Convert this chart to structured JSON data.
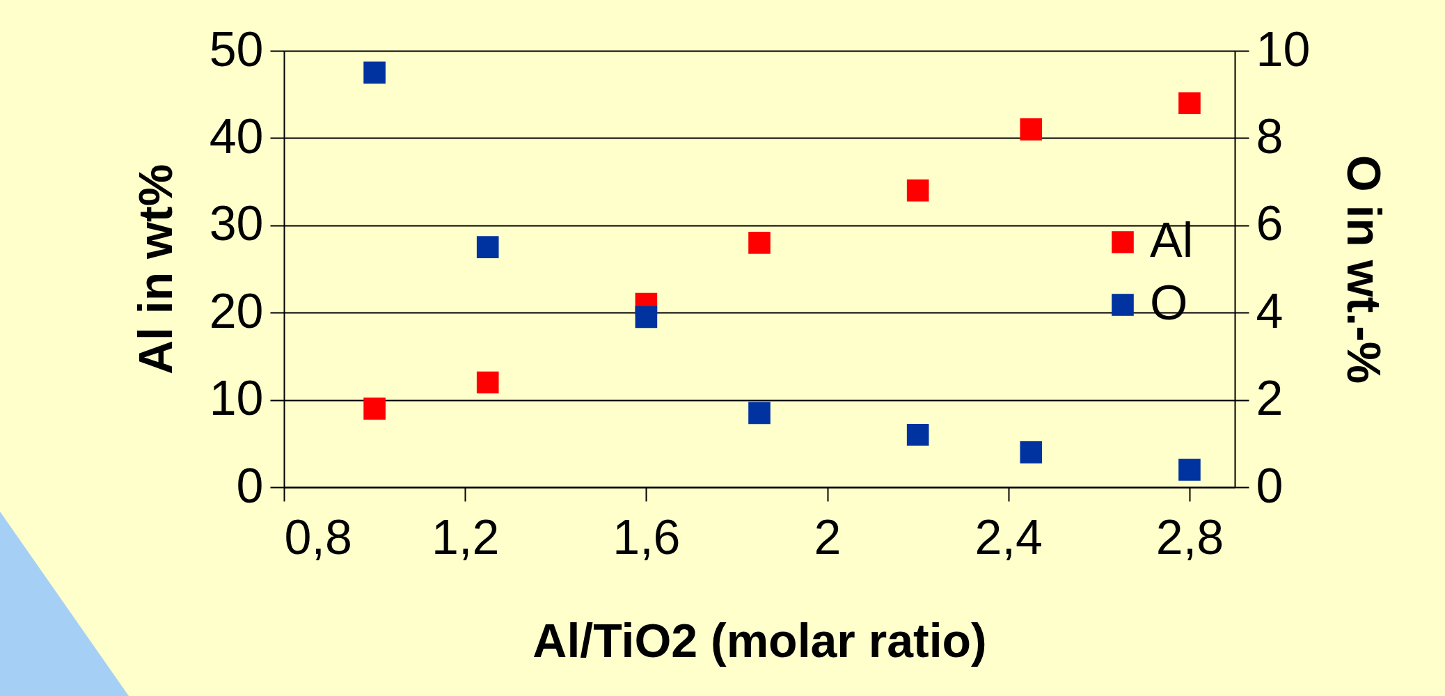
{
  "chart_data": {
    "type": "scatter",
    "xlabel": "Al/TiO2 (molar ratio)",
    "ylabel": "Al in wt%",
    "y2label": "O in wt.-%",
    "xlim": [
      0.8,
      2.9
    ],
    "xticks": [
      {
        "value": 0.8,
        "label": "0,8"
      },
      {
        "value": 1.2,
        "label": "1,2"
      },
      {
        "value": 1.6,
        "label": "1,6"
      },
      {
        "value": 2,
        "label": "2"
      },
      {
        "value": 2.4,
        "label": "2,4"
      },
      {
        "value": 2.8,
        "label": "2,8"
      }
    ],
    "ylim": [
      0,
      50
    ],
    "yticks": [
      0,
      10,
      20,
      30,
      40,
      50
    ],
    "y2lim": [
      0,
      10
    ],
    "y2ticks": [
      0,
      2,
      4,
      6,
      8,
      10
    ],
    "grid": "y",
    "legend": "right",
    "marker": "square",
    "series": [
      {
        "name": "Al",
        "color": "#ff0000",
        "x": [
          1.0,
          1.25,
          1.6,
          1.85,
          2.2,
          2.45,
          2.8
        ],
        "values": [
          9,
          12,
          21,
          28,
          34,
          41,
          44
        ]
      },
      {
        "name": "O",
        "color": "#0033a0",
        "axis": "y2",
        "x": [
          1.0,
          1.25,
          1.6,
          1.85,
          2.2,
          2.45,
          2.8
        ],
        "values": [
          9.5,
          5.5,
          3.9,
          1.7,
          1.2,
          0.8,
          0.4
        ]
      }
    ]
  }
}
